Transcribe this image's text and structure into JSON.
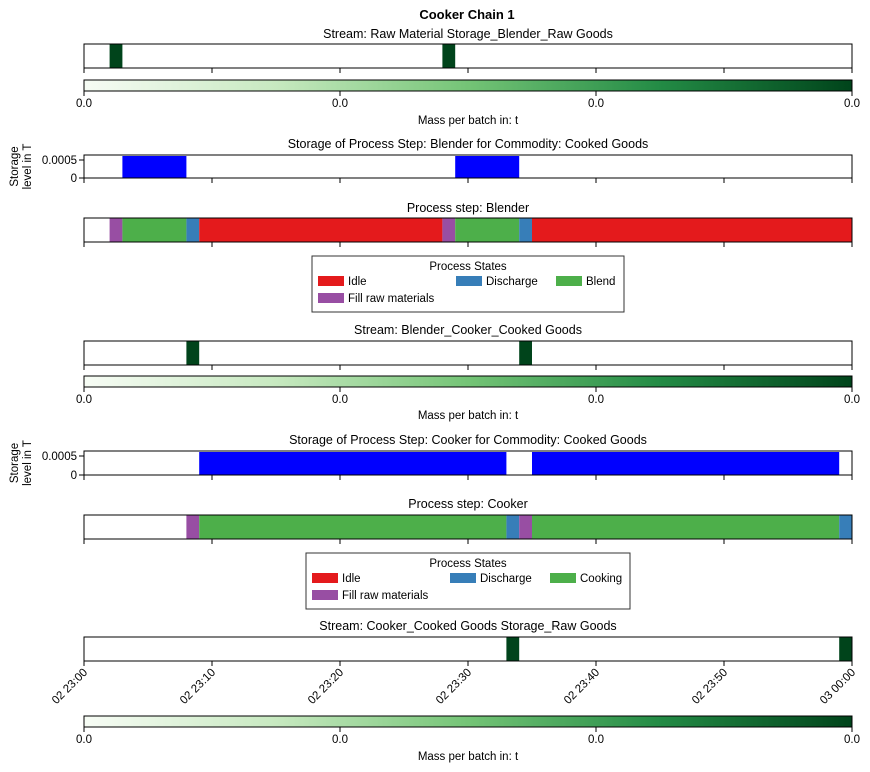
{
  "chart_data": {
    "type": "gantt",
    "title": "Cooker Chain 1",
    "x_axis": {
      "unit": "minutes",
      "range": [
        0,
        60
      ],
      "tick_values": [
        0,
        10,
        20,
        30,
        40,
        50,
        60
      ],
      "tick_labels": [
        "02 23:00",
        "02 23:10",
        "02 23:20",
        "02 23:30",
        "02 23:40",
        "02 23:50",
        "03 00:00"
      ]
    },
    "colorbar": {
      "label": "Mass per batch in: t",
      "tick_labels": [
        "0.0",
        "0.0",
        "0.0",
        "0.0"
      ],
      "colors": [
        "#f7fcf5",
        "#c7e9c0",
        "#74c476",
        "#238b45",
        "#00441b"
      ]
    },
    "stream_color": "#00441b",
    "storage_color": "#0000ff",
    "storage_axis": {
      "label_line1": "Storage",
      "label_line2": "level in T",
      "tick_labels": [
        "0.0005",
        "0"
      ]
    },
    "colors": {
      "Idle": "#e41a1c",
      "Discharge": "#377eb8",
      "Blend": "#4daf4a",
      "Cooking": "#4daf4a",
      "Fill raw materials": "#984ea3"
    },
    "panels": [
      {
        "kind": "stream",
        "title": "Stream: Raw Material Storage_Blender_Raw Goods",
        "events": [
          {
            "start": 2,
            "end": 3
          },
          {
            "start": 28,
            "end": 29
          }
        ]
      },
      {
        "kind": "storage",
        "title": "Storage of Process Step: Blender for Commodity: Cooked Goods",
        "blocks": [
          {
            "start": 3,
            "end": 8
          },
          {
            "start": 29,
            "end": 34
          }
        ]
      },
      {
        "kind": "process",
        "title": "Process step: Blender",
        "segments": [
          {
            "state": "Fill raw materials",
            "start": 2,
            "end": 3
          },
          {
            "state": "Blend",
            "start": 3,
            "end": 8
          },
          {
            "state": "Discharge",
            "start": 8,
            "end": 9
          },
          {
            "state": "Idle",
            "start": 9,
            "end": 28
          },
          {
            "state": "Fill raw materials",
            "start": 28,
            "end": 29
          },
          {
            "state": "Blend",
            "start": 29,
            "end": 34
          },
          {
            "state": "Discharge",
            "start": 34,
            "end": 35
          },
          {
            "state": "Idle",
            "start": 35,
            "end": 60
          }
        ],
        "legend": {
          "title": "Process States",
          "entries": [
            "Idle",
            "Discharge",
            "Blend",
            "Fill raw materials"
          ]
        }
      },
      {
        "kind": "stream",
        "title": "Stream: Blender_Cooker_Cooked Goods",
        "events": [
          {
            "start": 8,
            "end": 9
          },
          {
            "start": 34,
            "end": 35
          }
        ]
      },
      {
        "kind": "storage",
        "title": "Storage of Process Step: Cooker for Commodity: Cooked Goods",
        "blocks": [
          {
            "start": 9,
            "end": 33
          },
          {
            "start": 35,
            "end": 59
          }
        ]
      },
      {
        "kind": "process",
        "title": "Process step: Cooker",
        "segments": [
          {
            "state": "Fill raw materials",
            "start": 8,
            "end": 9
          },
          {
            "state": "Cooking",
            "start": 9,
            "end": 33
          },
          {
            "state": "Discharge",
            "start": 33,
            "end": 34
          },
          {
            "state": "Fill raw materials",
            "start": 34,
            "end": 35
          },
          {
            "state": "Cooking",
            "start": 35,
            "end": 59
          },
          {
            "state": "Discharge",
            "start": 59,
            "end": 60
          }
        ],
        "legend": {
          "title": "Process States",
          "entries": [
            "Idle",
            "Discharge",
            "Cooking",
            "Fill raw materials"
          ]
        }
      },
      {
        "kind": "stream",
        "title": "Stream: Cooker_Cooked Goods Storage_Raw Goods",
        "events": [
          {
            "start": 33,
            "end": 34
          },
          {
            "start": 59,
            "end": 60
          }
        ]
      }
    ]
  }
}
